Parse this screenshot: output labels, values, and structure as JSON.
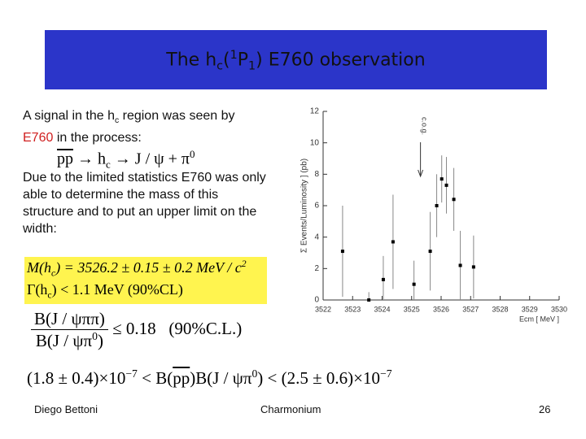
{
  "title": {
    "parts": [
      "The h",
      "c",
      "(",
      "1",
      "P",
      "1",
      ") E760 observation"
    ]
  },
  "intro": {
    "parts": [
      "A signal in the h",
      "c",
      " region was seen by ",
      "E760",
      " in the process:"
    ]
  },
  "process": {
    "parts": [
      "pp",
      " → h",
      "c",
      " → J / ψ + π",
      "0"
    ]
  },
  "note": "Due to the limited statistics E760 was only able to determine the mass of this structure and to put an upper limit on the width:",
  "mass": {
    "parts": [
      "M(h",
      "c",
      ") = 3526.2 ± 0.15 ± 0.2 MeV / c",
      "2"
    ]
  },
  "width": {
    "parts": [
      "Γ(h",
      "c",
      ") < 1.1 MeV (90%CL)"
    ]
  },
  "ratio": {
    "numerator": "B(J / ψππ)",
    "denominator": {
      "parts": [
        "B(J / ψπ",
        "0",
        ")"
      ]
    },
    "limit": "≤ 0.18",
    "cl": "(90%C.L.)"
  },
  "product": {
    "parts": [
      "(1.8 ± 0.4)×10",
      "−7",
      " < B(",
      "pp",
      ")B(J / ψπ",
      "0",
      ") < (2.5 ± 0.6)×10",
      "−7"
    ]
  },
  "footer": {
    "author": "Diego Bettoni",
    "topic": "Charmonium",
    "page": "26"
  },
  "chart_data": {
    "type": "scatter",
    "xlabel": "Ecm [ MeV ]",
    "ylabel": "Σ Events/Luminosity ] (pb)",
    "annotation": "c.o.g.",
    "annotation_x": 3525.3,
    "x": [
      3522.66,
      3523.55,
      3524.04,
      3524.37,
      3525.08,
      3525.63,
      3525.85,
      3526.02,
      3526.18,
      3526.43,
      3526.65,
      3527.1
    ],
    "values": [
      3.1,
      0,
      1.3,
      3.7,
      1.0,
      3.1,
      6.0,
      7.7,
      7.3,
      6.4,
      2.2,
      2.1
    ],
    "errors": [
      2.9,
      0.5,
      1.5,
      3.0,
      1.5,
      2.5,
      2.0,
      1.5,
      1.8,
      2.0,
      2.2,
      2.0
    ],
    "color": "#000000",
    "xlim": [
      3522,
      3530
    ],
    "ylim": [
      0,
      12
    ],
    "xticks": [
      3522,
      3523,
      3524,
      3525,
      3526,
      3527,
      3528,
      3529,
      3530
    ],
    "yticks": [
      0,
      2,
      4,
      6,
      8,
      10,
      12
    ]
  }
}
